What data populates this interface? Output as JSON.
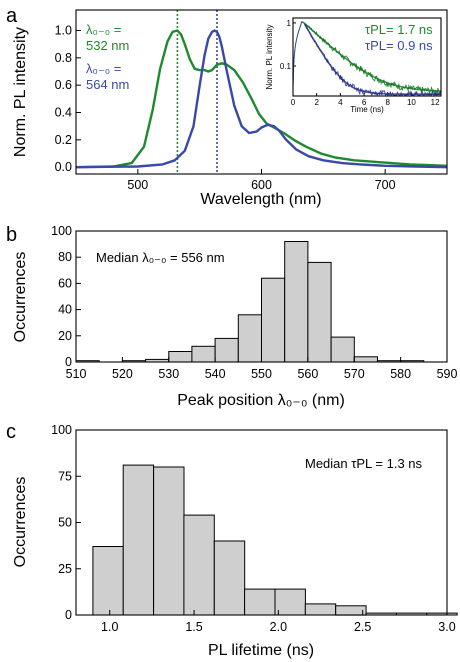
{
  "colors": {
    "green": "#1e8a2e",
    "blue": "#3a48a8",
    "bar": "#cfcfcf",
    "darkgreen": "#0f6b1e"
  },
  "chart_data": [
    {
      "panel": "a",
      "type": "line",
      "xlabel": "Wavelength (nm)",
      "ylabel": "Norm. PL intensity",
      "xlim": [
        450,
        750
      ],
      "ylim": [
        -0.05,
        1.15
      ],
      "xticks": [
        500,
        600,
        700
      ],
      "yticks": [
        0.0,
        0.2,
        0.4,
        0.6,
        0.8,
        1.0
      ],
      "ytick_labels": [
        "0.0",
        "0.2",
        "0.4",
        "0.6",
        "0.8",
        "1.0"
      ],
      "series": [
        {
          "color": "green",
          "x": [
            450,
            480,
            495,
            505,
            512,
            518,
            524,
            528,
            532,
            535,
            538,
            542,
            546,
            550,
            554,
            557,
            560,
            564,
            568,
            572,
            578,
            585,
            592,
            598,
            604,
            610,
            618,
            626,
            636,
            648,
            660,
            675,
            690,
            705,
            720,
            735,
            750
          ],
          "y": [
            0.0,
            0.005,
            0.03,
            0.15,
            0.42,
            0.72,
            0.92,
            0.99,
            1.0,
            0.97,
            0.9,
            0.79,
            0.72,
            0.71,
            0.71,
            0.7,
            0.71,
            0.75,
            0.76,
            0.75,
            0.71,
            0.62,
            0.5,
            0.39,
            0.32,
            0.29,
            0.25,
            0.2,
            0.15,
            0.1,
            0.07,
            0.05,
            0.04,
            0.03,
            0.02,
            0.015,
            0.01
          ]
        },
        {
          "color": "blue",
          "x": [
            450,
            500,
            520,
            530,
            538,
            545,
            550,
            554,
            557,
            560,
            562,
            564,
            566,
            568,
            572,
            578,
            584,
            590,
            596,
            600,
            605,
            610,
            614,
            620,
            628,
            638,
            650,
            665,
            680,
            700,
            725,
            750
          ],
          "y": [
            0.0,
            0.005,
            0.02,
            0.05,
            0.12,
            0.3,
            0.6,
            0.82,
            0.94,
            0.99,
            1.0,
            0.99,
            0.95,
            0.88,
            0.7,
            0.45,
            0.3,
            0.25,
            0.26,
            0.29,
            0.31,
            0.3,
            0.27,
            0.2,
            0.13,
            0.08,
            0.05,
            0.03,
            0.02,
            0.01,
            0.005,
            0.0
          ]
        }
      ],
      "vlines": [
        {
          "x": 532,
          "color": "green"
        },
        {
          "x": 564,
          "color": "blue"
        }
      ],
      "legend": [
        {
          "line1": "λ₀₋₀ =",
          "line2": "532 nm",
          "color": "green"
        },
        {
          "line1": "λ₀₋₀ =",
          "line2": "564 nm",
          "color": "blue"
        }
      ],
      "inset": {
        "type": "line",
        "xlabel": "Time (ns)",
        "ylabel": "Norm. PL intensity",
        "xlim": [
          0,
          12.5
        ],
        "xticks": [
          0,
          2,
          4,
          6,
          8,
          10,
          12
        ],
        "ylog": true,
        "ylim": [
          0.02,
          1.3
        ],
        "yticks": [
          0.1,
          1
        ],
        "ytick_labels": [
          "0.1",
          "1"
        ],
        "series": [
          {
            "color": "green",
            "label": "τPL= 1.7 ns",
            "tau": 1.7,
            "noise_floor": 0.025
          },
          {
            "color": "blue",
            "label": "τPL= 0.9 ns",
            "tau": 0.9,
            "noise_floor": 0.022
          }
        ]
      }
    },
    {
      "panel": "b",
      "type": "bar",
      "xlabel": "Peak position λ₀₋₀ (nm)",
      "ylabel": "Occurrences",
      "xlim": [
        510,
        590
      ],
      "ylim": [
        0,
        100
      ],
      "xticks": [
        510,
        520,
        530,
        540,
        550,
        560,
        570,
        580,
        590
      ],
      "yticks": [
        0,
        20,
        40,
        60,
        80,
        100
      ],
      "bin_width": 5,
      "bin_centers": [
        512.5,
        522.5,
        527.5,
        532.5,
        537.5,
        542.5,
        547.5,
        552.5,
        557.5,
        562.5,
        567.5,
        572.5,
        577.5,
        582.5
      ],
      "values": [
        1,
        1,
        2,
        8,
        12,
        18,
        36,
        64,
        92,
        76,
        19,
        4,
        1,
        1
      ],
      "annotation": {
        "text": "Median λ₀₋₀ = 556 nm"
      }
    },
    {
      "panel": "c",
      "type": "bar",
      "xlabel": "PL lifetime (ns)",
      "ylabel": "Occurrences",
      "xlim": [
        0.8,
        3.0
      ],
      "ylim": [
        0,
        100
      ],
      "xticks": [
        1.0,
        1.5,
        2.0,
        2.5,
        3.0
      ],
      "xtick_labels": [
        "1.0",
        "1.5",
        "2.0",
        "2.5",
        "3.0"
      ],
      "yticks": [
        0,
        25,
        50,
        75,
        100
      ],
      "bin_width": 0.18,
      "bin_centers": [
        0.99,
        1.17,
        1.35,
        1.53,
        1.71,
        1.89,
        2.07,
        2.25,
        2.43,
        2.61,
        2.79,
        2.97
      ],
      "values": [
        37,
        81,
        80,
        54,
        40,
        14,
        14,
        6,
        5,
        1,
        1,
        1
      ],
      "annotation": {
        "text": "Median τPL = 1.3 ns"
      }
    }
  ]
}
